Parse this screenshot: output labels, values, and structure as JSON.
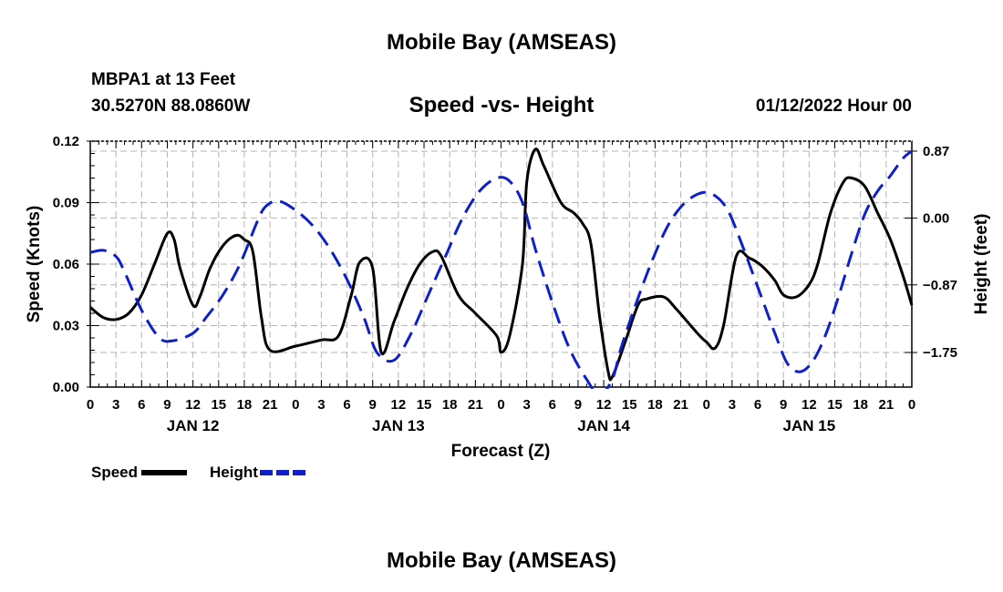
{
  "header": {
    "title": "Mobile Bay (AMSEAS)",
    "station": "MBPA1 at 13 Feet",
    "coords": "30.5270N  88.0860W",
    "subtitle": "Speed -vs- Height",
    "run_time": "01/12/2022 Hour 00",
    "footer_title": "Mobile Bay (AMSEAS)"
  },
  "legend": {
    "speed_label": "Speed",
    "height_label": "Height"
  },
  "colors": {
    "speed": "#000000",
    "height": "#1020c8",
    "grid": "#b4b4b4"
  },
  "chart_data": {
    "type": "line",
    "title": "Speed -vs- Height",
    "xlabel": "Forecast (Z)",
    "ylabel_left": "Speed (Knots)",
    "ylabel_right": "Height (feet)",
    "x_unit": "hours since 01/12/2022 00Z",
    "xlim": [
      0,
      96
    ],
    "ylim_left": [
      0,
      0.12
    ],
    "ylim_right": [
      -2.2,
      1.0
    ],
    "x_ticks": [
      0,
      3,
      6,
      9,
      12,
      15,
      18,
      21,
      24,
      27,
      30,
      33,
      36,
      39,
      42,
      45,
      48,
      51,
      54,
      57,
      60,
      63,
      66,
      69,
      72,
      75,
      78,
      81,
      84,
      87,
      90,
      93,
      96
    ],
    "x_tick_labels": [
      "0",
      "3",
      "6",
      "9",
      "12",
      "15",
      "18",
      "21",
      "0",
      "3",
      "6",
      "9",
      "12",
      "15",
      "18",
      "21",
      "0",
      "3",
      "6",
      "9",
      "12",
      "15",
      "18",
      "21",
      "0",
      "3",
      "6",
      "9",
      "12",
      "15",
      "18",
      "21",
      "0"
    ],
    "day_labels": [
      {
        "hour": 12,
        "label": "JAN 12"
      },
      {
        "hour": 36,
        "label": "JAN 13"
      },
      {
        "hour": 60,
        "label": "JAN 14"
      },
      {
        "hour": 84,
        "label": "JAN 15"
      }
    ],
    "y_left_ticks": [
      0,
      0.03,
      0.06,
      0.09,
      0.12
    ],
    "y_left_tick_labels": [
      "0.00",
      "0.03",
      "0.06",
      "0.09",
      "0.12"
    ],
    "y_right_ticks": [
      -1.75,
      -0.87,
      0.0,
      0.87
    ],
    "y_right_tick_labels": [
      "−1.75",
      "−0.87",
      "0.00",
      "0.87"
    ],
    "series": [
      {
        "name": "Speed",
        "axis": "left",
        "style": "solid",
        "x": [
          0,
          1.5,
          3,
          4.5,
          6,
          7.5,
          9,
          9.8,
          10.5,
          12,
          12.8,
          14,
          15.5,
          17,
          18,
          19,
          20,
          21,
          24,
          27,
          29,
          30.5,
          31.5,
          33,
          34,
          35.5,
          37,
          38.5,
          40,
          41,
          43,
          45,
          47.5,
          48,
          49,
          50.5,
          51,
          52,
          53,
          55,
          56.5,
          57.5,
          58.5,
          59.5,
          60.5,
          61,
          62.5,
          64,
          65,
          67,
          68.5,
          71,
          72,
          73,
          74,
          75.5,
          77,
          78.5,
          80,
          81,
          82.5,
          84,
          85,
          86.5,
          88,
          89,
          90.5,
          92,
          93.5,
          95,
          96
        ],
        "y": [
          0.039,
          0.034,
          0.033,
          0.036,
          0.045,
          0.06,
          0.075,
          0.072,
          0.058,
          0.04,
          0.044,
          0.058,
          0.069,
          0.074,
          0.072,
          0.066,
          0.034,
          0.018,
          0.02,
          0.023,
          0.025,
          0.045,
          0.061,
          0.058,
          0.017,
          0.032,
          0.048,
          0.06,
          0.066,
          0.064,
          0.045,
          0.036,
          0.025,
          0.017,
          0.025,
          0.06,
          0.1,
          0.116,
          0.108,
          0.09,
          0.085,
          0.08,
          0.07,
          0.035,
          0.008,
          0.005,
          0.022,
          0.04,
          0.043,
          0.044,
          0.038,
          0.026,
          0.022,
          0.019,
          0.03,
          0.064,
          0.063,
          0.059,
          0.052,
          0.045,
          0.044,
          0.05,
          0.06,
          0.085,
          0.1,
          0.102,
          0.098,
          0.085,
          0.072,
          0.054,
          0.04
        ]
      },
      {
        "name": "Height",
        "axis": "right",
        "style": "dashed",
        "x": [
          0,
          1.5,
          3,
          4,
          6,
          8,
          9.5,
          12,
          13.5,
          15.5,
          17.5,
          19.5,
          20.5,
          22,
          24,
          26,
          28,
          30,
          32,
          33.5,
          35.5,
          37.5,
          39.5,
          41.5,
          43.5,
          45.5,
          47.5,
          49,
          50.5,
          52,
          54,
          56,
          58,
          59.5,
          61,
          62,
          63.5,
          65.5,
          67.5,
          69.5,
          71.5,
          73,
          74.5,
          76,
          78,
          80,
          81.5,
          83,
          84.5,
          86,
          87.5,
          89,
          90.5,
          92,
          93.5,
          95,
          96
        ],
        "y": [
          -0.45,
          -0.42,
          -0.5,
          -0.7,
          -1.2,
          -1.55,
          -1.6,
          -1.5,
          -1.3,
          -1.0,
          -0.6,
          -0.05,
          0.15,
          0.22,
          0.1,
          -0.1,
          -0.4,
          -0.8,
          -1.3,
          -1.75,
          -1.85,
          -1.5,
          -1.0,
          -0.5,
          0.0,
          0.35,
          0.52,
          0.48,
          0.2,
          -0.4,
          -1.1,
          -1.7,
          -2.1,
          -2.3,
          -2.1,
          -1.7,
          -1.2,
          -0.6,
          -0.1,
          0.2,
          0.33,
          0.29,
          0.1,
          -0.3,
          -0.9,
          -1.5,
          -1.9,
          -2.0,
          -1.85,
          -1.5,
          -1.0,
          -0.45,
          0.05,
          0.35,
          0.55,
          0.78,
          0.87
        ]
      }
    ]
  }
}
